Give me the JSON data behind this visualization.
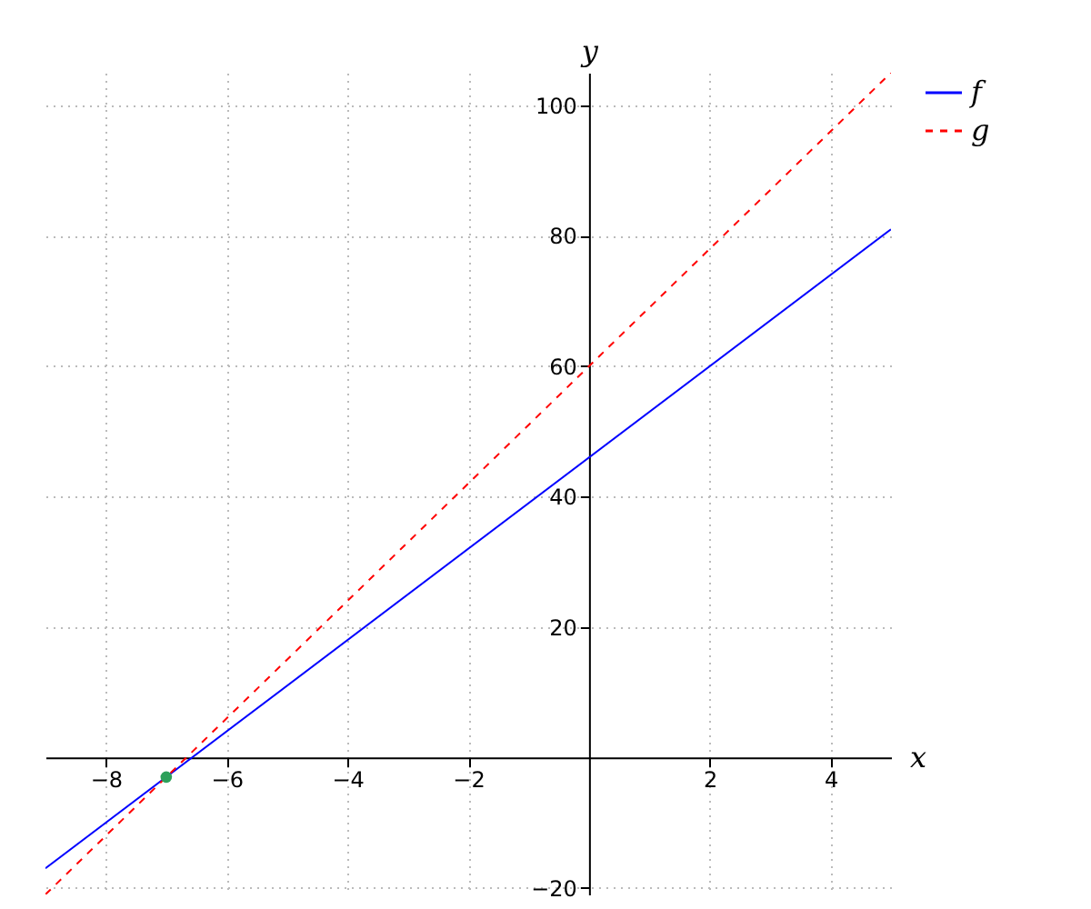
{
  "chart_data": {
    "type": "line",
    "xlabel": "x",
    "ylabel": "y",
    "xlim": [
      -9,
      5
    ],
    "ylim": [
      -21,
      105
    ],
    "xticks": [
      -8,
      -6,
      -4,
      -2,
      2,
      4
    ],
    "yticks": [
      -20,
      20,
      40,
      60,
      80,
      100
    ],
    "grid": true,
    "legend": "top right",
    "series": [
      {
        "name": "f",
        "color": "#0000ff",
        "line_style": "solid",
        "marker": "none",
        "x": [
          -9,
          5
        ],
        "values": [
          -17,
          81
        ]
      },
      {
        "name": "g",
        "color": "#ff0000",
        "line_style": "dashed",
        "marker": "none",
        "x": [
          -9,
          5
        ],
        "values": [
          -21,
          105
        ]
      },
      {
        "type": "scatter",
        "color": "#2ca05a",
        "marker": "circle",
        "x": [
          -7
        ],
        "values": [
          -3
        ]
      }
    ]
  }
}
